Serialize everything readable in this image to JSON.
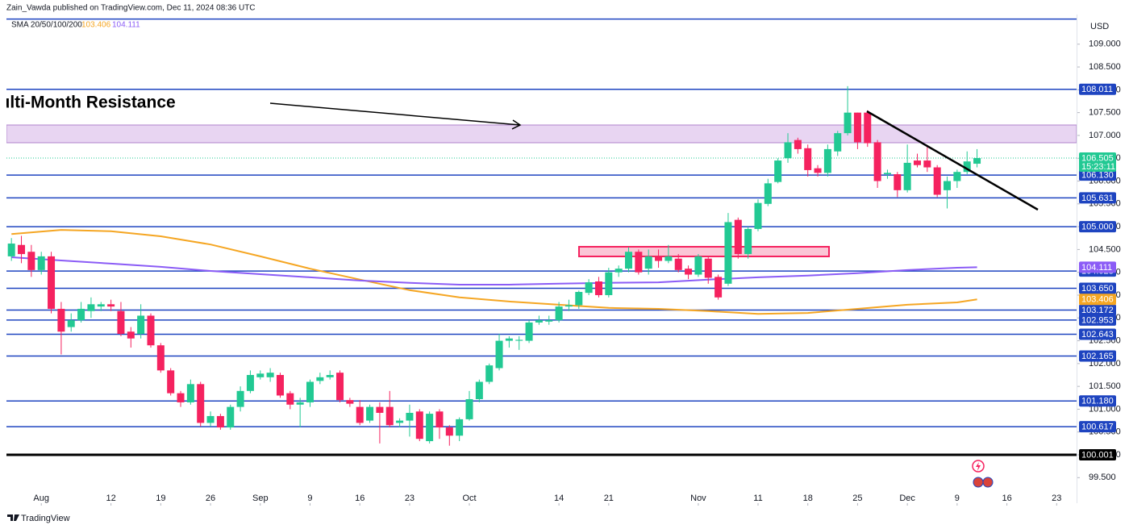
{
  "header": {
    "publisher": "Zain_Vawda published on TradingView.com, Dec 11, 2024 08:36 UTC"
  },
  "footer": {
    "brand": "TradingView"
  },
  "drawings": {
    "annotation": "Multi-Month Resistance"
  },
  "chart_data": {
    "type": "candlestick",
    "indicator_label": "SMA 20/50/100/200",
    "currency": "USD",
    "countdown": "15:23:11",
    "up_color": "#22c993",
    "down_color": "#f5225f",
    "grid": false,
    "xlim": [
      -0.5,
      107
    ],
    "ylim": [
      98.94,
      109.65
    ],
    "xticks": [
      {
        "value": 3,
        "label": "Aug"
      },
      {
        "value": 10,
        "label": "12"
      },
      {
        "value": 15,
        "label": "19"
      },
      {
        "value": 20,
        "label": "26"
      },
      {
        "value": 25,
        "label": "Sep"
      },
      {
        "value": 30,
        "label": "9"
      },
      {
        "value": 35,
        "label": "16"
      },
      {
        "value": 40,
        "label": "23"
      },
      {
        "value": 46,
        "label": "Oct"
      },
      {
        "value": 55,
        "label": "14"
      },
      {
        "value": 60,
        "label": "21"
      },
      {
        "value": 69,
        "label": "Nov"
      },
      {
        "value": 75,
        "label": "11"
      },
      {
        "value": 80,
        "label": "18"
      },
      {
        "value": 85,
        "label": "25"
      },
      {
        "value": 90,
        "label": "Dec"
      },
      {
        "value": 95,
        "label": "9"
      },
      {
        "value": 100,
        "label": "16"
      },
      {
        "value": 105,
        "label": "23"
      }
    ],
    "yticks": [
      {
        "value": 99.5,
        "label": "99.500"
      },
      {
        "value": 100,
        "label": "100.000"
      },
      {
        "value": 100.5,
        "label": "100.500"
      },
      {
        "value": 101,
        "label": "101.000"
      },
      {
        "value": 101.5,
        "label": "101.500"
      },
      {
        "value": 102,
        "label": "102.000"
      },
      {
        "value": 102.5,
        "label": "102.500"
      },
      {
        "value": 103,
        "label": "103.000"
      },
      {
        "value": 103.5,
        "label": "103.500"
      },
      {
        "value": 104,
        "label": "104.000"
      },
      {
        "value": 104.5,
        "label": "104.500"
      },
      {
        "value": 105,
        "label": "105.000"
      },
      {
        "value": 105.5,
        "label": "105.500"
      },
      {
        "value": 106,
        "label": "106.000"
      },
      {
        "value": 106.5,
        "label": "106.500"
      },
      {
        "value": 107,
        "label": "107.000"
      },
      {
        "value": 107.5,
        "label": "107.500"
      },
      {
        "value": 108,
        "label": "108.000"
      },
      {
        "value": 108.5,
        "label": "108.500"
      },
      {
        "value": 109,
        "label": "109.000"
      }
    ],
    "open": [
      104.35,
      104.6,
      104.45,
      104.05,
      104.35,
      103.2,
      102.8,
      102.95,
      103.15,
      103.25,
      103.3,
      103.15,
      102.7,
      102.65,
      103.05,
      102.4,
      101.85,
      101.35,
      101.15,
      101.55,
      100.7,
      100.85,
      100.6,
      101.05,
      101.4,
      101.7,
      101.7,
      101.75,
      101.35,
      101.1,
      101.15,
      101.62,
      101.7,
      101.8,
      101.2,
      101.05,
      100.75,
      101.05,
      101.05,
      100.7,
      100.75,
      100.95,
      100.3,
      100.95,
      100.6,
      100.42,
      100.78,
      101.22,
      101.6,
      101.9,
      102.5,
      102.5,
      102.5,
      102.9,
      102.92,
      102.95,
      103.25,
      103.28,
      103.55,
      103.8,
      103.5,
      104.0,
      104.08,
      104.45,
      104.08,
      104.35,
      104.25,
      104.3,
      104.08,
      103.95,
      104.3,
      103.9,
      103.75,
      105.15,
      104.4,
      104.95,
      105.5,
      105.98,
      106.5,
      106.9,
      106.72,
      106.28,
      106.18,
      106.65,
      107.05,
      107.5,
      107.5,
      106.85,
      106.15,
      106.15,
      105.8,
      106.45,
      106.45,
      106.3,
      105.8,
      106.0,
      106.2,
      106.38
    ],
    "high": [
      104.75,
      104.8,
      104.6,
      104.45,
      104.45,
      103.35,
      103.1,
      103.35,
      103.45,
      103.35,
      103.4,
      103.35,
      102.8,
      103.3,
      103.1,
      102.45,
      101.9,
      101.4,
      101.65,
      101.6,
      100.95,
      100.9,
      101.1,
      101.5,
      101.85,
      101.85,
      101.9,
      101.8,
      101.4,
      101.25,
      101.65,
      101.8,
      101.85,
      101.85,
      101.25,
      101.2,
      101.1,
      101.15,
      101.4,
      100.8,
      101.1,
      101.0,
      100.95,
      101.0,
      100.65,
      100.82,
      101.4,
      101.65,
      102.0,
      102.65,
      102.6,
      102.6,
      102.95,
      103.05,
      103.05,
      103.35,
      103.4,
      103.6,
      103.85,
      103.9,
      104.1,
      104.15,
      104.55,
      104.5,
      104.5,
      104.5,
      104.6,
      104.4,
      104.15,
      104.4,
      104.35,
      103.95,
      105.3,
      105.2,
      105.0,
      105.6,
      106.05,
      106.5,
      107.05,
      106.95,
      106.8,
      106.35,
      106.8,
      107.1,
      108.08,
      107.5,
      107.55,
      106.9,
      106.25,
      106.2,
      106.8,
      106.6,
      106.75,
      106.35,
      106.1,
      106.25,
      106.65,
      106.7
    ],
    "low": [
      104.25,
      104.2,
      103.9,
      103.95,
      103.1,
      102.2,
      102.7,
      102.9,
      103.0,
      103.15,
      103.15,
      102.6,
      102.35,
      102.55,
      102.35,
      101.8,
      101.3,
      101.05,
      101.1,
      100.62,
      100.62,
      100.55,
      100.55,
      100.95,
      101.35,
      101.65,
      101.6,
      101.25,
      101.0,
      100.6,
      101.05,
      101.55,
      101.65,
      101.15,
      101.05,
      100.65,
      100.7,
      100.25,
      100.6,
      100.6,
      100.4,
      100.3,
      100.25,
      100.35,
      100.2,
      100.3,
      100.75,
      101.15,
      101.55,
      101.85,
      102.35,
      102.3,
      102.45,
      102.85,
      102.85,
      102.9,
      103.15,
      103.2,
      103.5,
      103.45,
      103.45,
      103.9,
      104.0,
      103.95,
      103.95,
      104.1,
      104.2,
      104.0,
      103.85,
      103.9,
      103.75,
      103.4,
      103.7,
      104.3,
      104.3,
      104.9,
      105.45,
      105.95,
      106.4,
      106.6,
      106.1,
      106.1,
      106.1,
      106.55,
      107.0,
      106.7,
      106.75,
      105.85,
      106.05,
      105.65,
      105.75,
      106.3,
      106.2,
      105.65,
      105.4,
      105.85,
      106.15,
      106.3
    ],
    "close": [
      104.63,
      104.4,
      104.05,
      104.35,
      103.2,
      102.7,
      102.95,
      103.2,
      103.3,
      103.3,
      103.25,
      102.65,
      102.55,
      103.05,
      102.4,
      101.85,
      101.35,
      101.15,
      101.55,
      100.7,
      100.85,
      100.6,
      101.05,
      101.4,
      101.75,
      101.78,
      101.8,
      101.3,
      101.1,
      101.15,
      101.6,
      101.7,
      101.75,
      101.2,
      101.12,
      100.7,
      101.05,
      100.92,
      100.65,
      100.75,
      100.92,
      100.35,
      100.9,
      100.6,
      100.42,
      100.78,
      101.22,
      101.6,
      101.96,
      102.5,
      102.55,
      102.52,
      102.9,
      102.95,
      102.95,
      103.25,
      103.28,
      103.57,
      103.78,
      103.5,
      104.0,
      104.08,
      104.45,
      104.0,
      104.35,
      104.25,
      104.35,
      104.05,
      103.95,
      104.35,
      103.88,
      103.45,
      105.1,
      104.4,
      104.95,
      105.52,
      105.95,
      106.45,
      106.85,
      106.7,
      106.24,
      106.18,
      106.7,
      107.05,
      107.5,
      106.85,
      106.83,
      106.0,
      106.18,
      105.8,
      106.4,
      106.35,
      106.3,
      105.7,
      106.0,
      106.2,
      106.43,
      106.505
    ],
    "sma": [
      {
        "color": "#f5a623",
        "x": [
          0,
          5,
          10,
          15,
          20,
          25,
          30,
          35,
          40,
          45,
          50,
          55,
          60,
          65,
          70,
          75,
          80,
          85,
          90,
          95,
          97
        ],
        "values": [
          104.84,
          104.93,
          104.9,
          104.79,
          104.61,
          104.35,
          104.08,
          103.84,
          103.61,
          103.45,
          103.36,
          103.29,
          103.22,
          103.2,
          103.15,
          103.09,
          103.11,
          103.2,
          103.29,
          103.34,
          103.406
        ]
      },
      {
        "color": "#8b5cf6",
        "x": [
          0,
          5,
          10,
          15,
          20,
          25,
          30,
          35,
          40,
          45,
          50,
          55,
          60,
          65,
          70,
          75,
          80,
          85,
          90,
          95,
          97
        ],
        "values": [
          104.33,
          104.26,
          104.19,
          104.12,
          104.03,
          103.96,
          103.89,
          103.82,
          103.77,
          103.73,
          103.73,
          103.75,
          103.77,
          103.78,
          103.84,
          103.89,
          103.93,
          103.98,
          104.05,
          104.1,
          104.111
        ]
      }
    ],
    "level_color": "#1e44c0",
    "top_level": 109.55,
    "levels": [
      108.011,
      {
        "value": 106.13,
        "label": "106.130"
      },
      105.631,
      {
        "value": 105,
        "label": "105.000"
      },
      104.028,
      {
        "value": 103.65,
        "label": "103.650"
      },
      103.172,
      102.953,
      102.643,
      102.165,
      {
        "value": 101.18,
        "label": "101.180"
      },
      100.617
    ],
    "key_level": {
      "value": 100.001,
      "color": "#000000"
    }
  }
}
